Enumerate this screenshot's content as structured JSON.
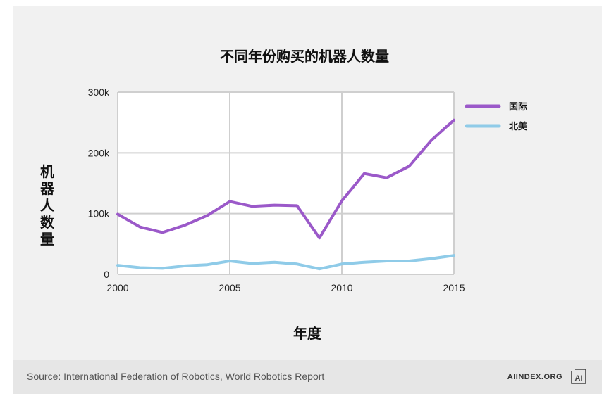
{
  "chart_data": {
    "type": "line",
    "title": "不同年份购买的机器人数量",
    "xlabel": "年度",
    "ylabel": "机器人数量",
    "xlim": [
      2000,
      2015
    ],
    "ylim": [
      0,
      300000
    ],
    "x_ticks": [
      "2000",
      "2005",
      "2010",
      "2015"
    ],
    "y_ticks": [
      "0",
      "100k",
      "200k",
      "300k"
    ],
    "grid": true,
    "legend_position": "top-right",
    "x": [
      2000,
      2001,
      2002,
      2003,
      2004,
      2005,
      2006,
      2007,
      2008,
      2009,
      2010,
      2011,
      2012,
      2013,
      2014,
      2015
    ],
    "series": [
      {
        "name": "国际",
        "color": "#9b59c9",
        "values": [
          99000,
          78000,
          69000,
          81000,
          97000,
          120000,
          112000,
          114000,
          113000,
          60000,
          121000,
          166000,
          159000,
          178000,
          221000,
          254000
        ]
      },
      {
        "name": "北美",
        "color": "#8fcbe8",
        "values": [
          15000,
          11000,
          10000,
          14000,
          16000,
          22000,
          18000,
          20000,
          17000,
          9000,
          17000,
          20000,
          22000,
          22000,
          26000,
          31000
        ]
      }
    ]
  },
  "footer": {
    "source": "Source: International Federation of Robotics, World Robotics Report",
    "brand": "AIINDEX.ORG",
    "logo_text": "AI"
  }
}
